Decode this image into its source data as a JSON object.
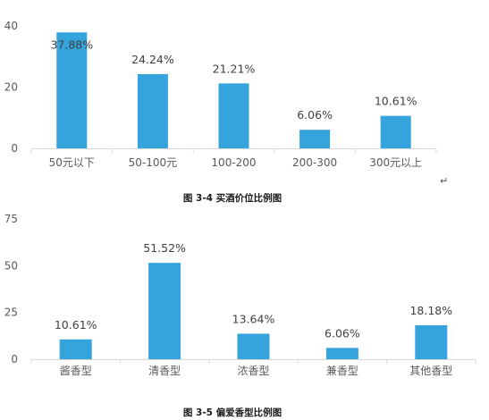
{
  "chart_data": [
    {
      "type": "bar",
      "title": "",
      "categories": [
        "50元以下",
        "50-100元",
        "100-200",
        "200-300",
        "300元以上"
      ],
      "values": [
        37.88,
        24.24,
        21.21,
        6.06,
        10.61
      ],
      "value_labels": [
        "37.88%",
        "24.24%",
        "21.21%",
        "6.06%",
        "10.61%"
      ],
      "ylim": [
        0,
        40
      ],
      "yticks": [
        0,
        20,
        40
      ],
      "bar_color": "#35A3DC",
      "grid": false,
      "caption": "图 3-4  买酒价位比例图"
    },
    {
      "type": "bar",
      "title": "",
      "categories": [
        "酱香型",
        "清香型",
        "浓香型",
        "兼香型",
        "其他香型"
      ],
      "values": [
        10.61,
        51.52,
        13.64,
        6.06,
        18.18
      ],
      "value_labels": [
        "10.61%",
        "51.52%",
        "13.64%",
        "6.06%",
        "18.18%"
      ],
      "ylim": [
        0,
        75
      ],
      "yticks": [
        0,
        25,
        50,
        75
      ],
      "bar_color": "#35A3DC",
      "grid": false,
      "caption": "图 3-5  偏爱香型比例图"
    }
  ],
  "paragraph_mark": "↵"
}
